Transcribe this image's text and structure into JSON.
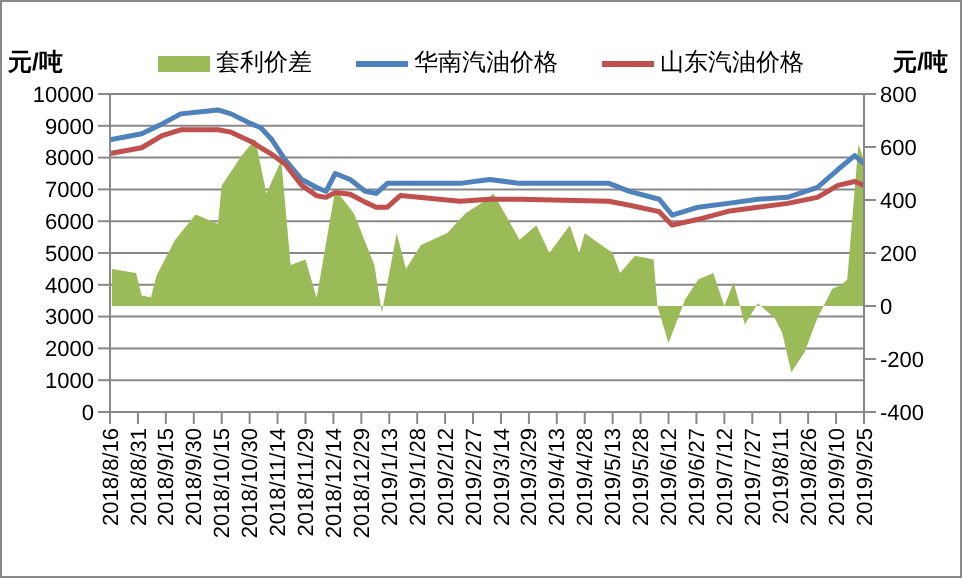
{
  "chart_data": {
    "type": "line",
    "ylabel": "元/吨",
    "y2label": "元/吨",
    "legend": "top",
    "grid": "y",
    "xlim": [
      "2018-08-16",
      "2019-09-25"
    ],
    "xticks": [
      {
        "value": "2018-08-16",
        "label": "2018/8/16"
      },
      {
        "value": "2018-08-31",
        "label": "2018/8/31"
      },
      {
        "value": "2018-09-15",
        "label": "2018/9/15"
      },
      {
        "value": "2018-09-30",
        "label": "2018/9/30"
      },
      {
        "value": "2018-10-15",
        "label": "2018/10/15"
      },
      {
        "value": "2018-10-30",
        "label": "2018/10/30"
      },
      {
        "value": "2018-11-14",
        "label": "2018/11/14"
      },
      {
        "value": "2018-11-29",
        "label": "2018/11/29"
      },
      {
        "value": "2018-12-14",
        "label": "2018/12/14"
      },
      {
        "value": "2018-12-29",
        "label": "2018/12/29"
      },
      {
        "value": "2019-01-13",
        "label": "2019/1/13"
      },
      {
        "value": "2019-01-28",
        "label": "2019/1/28"
      },
      {
        "value": "2019-02-12",
        "label": "2019/2/12"
      },
      {
        "value": "2019-02-27",
        "label": "2019/2/27"
      },
      {
        "value": "2019-03-14",
        "label": "2019/3/14"
      },
      {
        "value": "2019-03-29",
        "label": "2019/3/29"
      },
      {
        "value": "2019-04-13",
        "label": "2019/4/13"
      },
      {
        "value": "2019-04-28",
        "label": "2019/4/28"
      },
      {
        "value": "2019-05-13",
        "label": "2019/5/13"
      },
      {
        "value": "2019-05-28",
        "label": "2019/5/28"
      },
      {
        "value": "2019-06-12",
        "label": "2019/6/12"
      },
      {
        "value": "2019-06-27",
        "label": "2019/6/27"
      },
      {
        "value": "2019-07-12",
        "label": "2019/7/12"
      },
      {
        "value": "2019-07-27",
        "label": "2019/7/27"
      },
      {
        "value": "2019-08-11",
        "label": "2019/8/11"
      },
      {
        "value": "2019-08-26",
        "label": "2019/8/26"
      },
      {
        "value": "2019-09-10",
        "label": "2019/9/10"
      },
      {
        "value": "2019-09-25",
        "label": "2019/9/25"
      }
    ],
    "ylim": [
      0,
      10000
    ],
    "yticks": [
      0,
      1000,
      2000,
      3000,
      4000,
      5000,
      6000,
      7000,
      8000,
      9000,
      10000
    ],
    "y2lim": [
      -400,
      800
    ],
    "y2ticks": [
      -400,
      -200,
      0,
      200,
      400,
      600,
      800
    ],
    "series": [
      {
        "name": "套利价差",
        "type": "area",
        "axis": "y2",
        "color": "#9bbb59",
        "x": [
          "2018-08-17",
          "2018-08-30",
          "2018-09-02",
          "2018-09-07",
          "2018-09-10",
          "2018-09-20",
          "2018-10-01",
          "2018-10-13",
          "2018-10-15",
          "2018-10-26",
          "2018-11-02",
          "2018-11-08",
          "2018-11-16",
          "2018-11-21",
          "2018-11-29",
          "2018-12-05",
          "2018-12-15",
          "2018-12-25",
          "2019-01-05",
          "2019-01-09",
          "2019-01-17",
          "2019-01-22",
          "2019-01-30",
          "2019-02-13",
          "2019-02-23",
          "2019-03-06",
          "2019-03-10",
          "2019-03-24",
          "2019-04-02",
          "2019-04-09",
          "2019-04-20",
          "2019-04-25",
          "2019-04-28",
          "2019-05-13",
          "2019-05-17",
          "2019-05-25",
          "2019-06-04",
          "2019-06-06",
          "2019-06-12",
          "2019-06-21",
          "2019-06-28",
          "2019-07-06",
          "2019-07-12",
          "2019-07-17",
          "2019-07-23",
          "2019-07-30",
          "2019-08-08",
          "2019-08-12",
          "2019-08-17",
          "2019-08-24",
          "2019-08-31",
          "2019-09-08",
          "2019-09-13",
          "2019-09-16",
          "2019-09-22",
          "2019-09-25"
        ],
        "values": [
          140,
          125,
          40,
          33,
          115,
          250,
          345,
          310,
          455,
          570,
          630,
          425,
          550,
          155,
          175,
          30,
          440,
          350,
          155,
          -25,
          275,
          140,
          230,
          275,
          350,
          400,
          425,
          250,
          305,
          200,
          305,
          200,
          275,
          200,
          125,
          190,
          175,
          0,
          -140,
          25,
          100,
          125,
          0,
          90,
          -70,
          10,
          -45,
          -100,
          -250,
          -175,
          -45,
          65,
          80,
          100,
          610,
          550
        ]
      },
      {
        "name": "华南汽油价格",
        "color": "#4f81bd",
        "x": [
          "2018-08-16",
          "2018-09-02",
          "2018-09-13",
          "2018-09-23",
          "2018-10-04",
          "2018-10-13",
          "2018-10-20",
          "2018-10-31",
          "2018-11-05",
          "2018-11-11",
          "2018-11-18",
          "2018-11-27",
          "2018-12-05",
          "2018-12-10",
          "2018-12-15",
          "2018-12-23",
          "2018-12-31",
          "2019-01-06",
          "2019-01-12",
          "2019-01-19",
          "2019-02-20",
          "2019-03-08",
          "2019-03-24",
          "2019-05-11",
          "2019-05-22",
          "2019-06-07",
          "2019-06-14",
          "2019-06-28",
          "2019-07-14",
          "2019-07-30",
          "2019-08-15",
          "2019-08-31",
          "2019-09-11",
          "2019-09-20",
          "2019-09-25"
        ],
        "values": [
          8560,
          8750,
          9060,
          9375,
          9440,
          9500,
          9375,
          9060,
          8940,
          8560,
          7940,
          7310,
          7060,
          6940,
          7500,
          7310,
          6940,
          6875,
          7190,
          7190,
          7190,
          7310,
          7190,
          7190,
          6940,
          6690,
          6190,
          6440,
          6560,
          6690,
          6750,
          7060,
          7625,
          8060,
          7810
        ]
      },
      {
        "name": "山东汽油价格",
        "color": "#c0504d",
        "x": [
          "2018-08-16",
          "2018-09-02",
          "2018-09-13",
          "2018-09-23",
          "2018-10-04",
          "2018-10-13",
          "2018-10-20",
          "2018-10-31",
          "2018-11-05",
          "2018-11-11",
          "2018-11-18",
          "2018-11-27",
          "2018-12-05",
          "2018-12-10",
          "2018-12-15",
          "2018-12-23",
          "2018-12-31",
          "2019-01-06",
          "2019-01-12",
          "2019-01-19",
          "2019-02-20",
          "2019-03-08",
          "2019-03-24",
          "2019-05-11",
          "2019-05-22",
          "2019-06-07",
          "2019-06-14",
          "2019-06-28",
          "2019-07-14",
          "2019-07-30",
          "2019-08-15",
          "2019-08-31",
          "2019-09-11",
          "2019-09-20",
          "2019-09-25"
        ],
        "values": [
          8125,
          8310,
          8690,
          8875,
          8875,
          8875,
          8800,
          8500,
          8310,
          8100,
          7800,
          7125,
          6800,
          6750,
          6900,
          6850,
          6600,
          6440,
          6440,
          6810,
          6625,
          6690,
          6690,
          6625,
          6500,
          6300,
          5875,
          6060,
          6310,
          6440,
          6560,
          6750,
          7125,
          7250,
          7125
        ]
      }
    ]
  }
}
